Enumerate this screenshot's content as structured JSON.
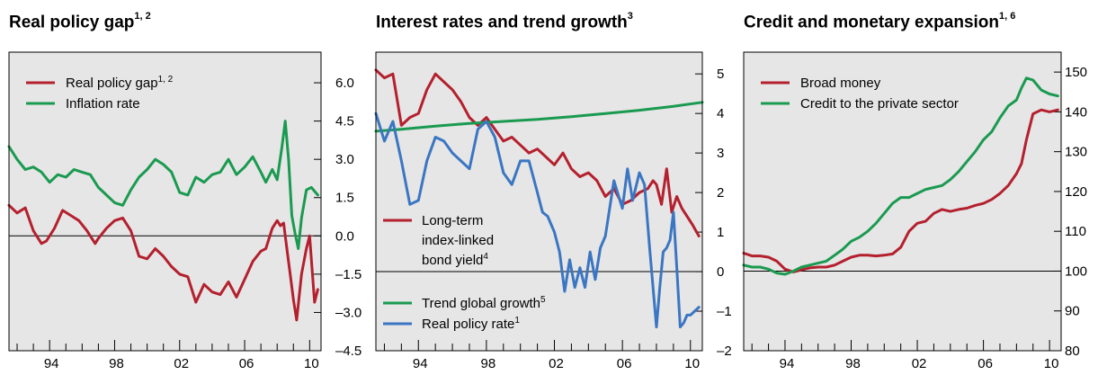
{
  "colors": {
    "red": "#b4202e",
    "green": "#1a9a50",
    "blue": "#3b76c2",
    "panel_bg": "#e6e6e6"
  },
  "chart_data": [
    {
      "type": "line",
      "title": "Real policy gap",
      "title_sup": "1, 2",
      "xlim": [
        1991.5,
        2010.7
      ],
      "ylim": [
        -4.5,
        7.2
      ],
      "x_ticks": [
        "94",
        "98",
        "02",
        "06",
        "10"
      ],
      "x_tick_years": [
        1994,
        1998,
        2002,
        2006,
        2010
      ],
      "y_ticks": [
        "6.0",
        "4.5",
        "3.0",
        "1.5",
        "0.0",
        "–1.5",
        "–3.0",
        "–4.5"
      ],
      "y_tick_values": [
        6.0,
        4.5,
        3.0,
        1.5,
        0.0,
        -1.5,
        -3.0,
        -4.5
      ],
      "y_axis_side": "right",
      "zero_line": 0,
      "legend_placement": "top-left",
      "series": [
        {
          "name": "Real policy gap",
          "name_sup": "1, 2",
          "color_key": "red",
          "x": [
            1991.5,
            1992.0,
            1992.5,
            1993.0,
            1993.5,
            1993.8,
            1994.3,
            1994.8,
            1995.3,
            1995.8,
            1996.3,
            1996.8,
            1997.0,
            1997.5,
            1998.0,
            1998.5,
            1999.0,
            1999.5,
            2000.0,
            2000.5,
            2001.0,
            2001.5,
            2002.0,
            2002.5,
            2003.0,
            2003.5,
            2004.0,
            2004.5,
            2005.0,
            2005.5,
            2006.0,
            2006.5,
            2007.0,
            2007.3,
            2007.7,
            2008.0,
            2008.2,
            2008.4,
            2008.6,
            2008.8,
            2009.0,
            2009.2,
            2009.5,
            2009.8,
            2010.0,
            2010.3,
            2010.5
          ],
          "y": [
            1.2,
            0.9,
            1.1,
            0.2,
            -0.3,
            -0.2,
            0.3,
            1.0,
            0.8,
            0.6,
            0.2,
            -0.3,
            -0.1,
            0.3,
            0.6,
            0.7,
            0.2,
            -0.8,
            -0.9,
            -0.5,
            -0.8,
            -1.2,
            -1.5,
            -1.6,
            -2.6,
            -1.9,
            -2.2,
            -2.3,
            -1.8,
            -2.4,
            -1.7,
            -1.0,
            -0.6,
            -0.5,
            0.3,
            0.6,
            0.4,
            0.5,
            -0.5,
            -1.5,
            -2.5,
            -3.3,
            -1.5,
            -0.5,
            0.0,
            -2.6,
            -2.1
          ]
        },
        {
          "name": "Inflation rate",
          "color_key": "green",
          "x": [
            1991.5,
            1992.0,
            1992.5,
            1993.0,
            1993.5,
            1994.0,
            1994.5,
            1995.0,
            1995.5,
            1996.0,
            1996.5,
            1997.0,
            1997.5,
            1998.0,
            1998.5,
            1999.0,
            1999.5,
            2000.0,
            2000.5,
            2001.0,
            2001.5,
            2002.0,
            2002.5,
            2003.0,
            2003.5,
            2004.0,
            2004.5,
            2005.0,
            2005.5,
            2006.0,
            2006.5,
            2007.0,
            2007.3,
            2007.7,
            2008.0,
            2008.3,
            2008.5,
            2008.7,
            2008.9,
            2009.1,
            2009.3,
            2009.5,
            2009.8,
            2010.1,
            2010.5
          ],
          "y": [
            3.5,
            3.0,
            2.6,
            2.7,
            2.5,
            2.1,
            2.4,
            2.3,
            2.6,
            2.5,
            2.4,
            1.9,
            1.6,
            1.3,
            1.2,
            1.8,
            2.3,
            2.6,
            3.0,
            2.8,
            2.5,
            1.7,
            1.6,
            2.3,
            2.1,
            2.4,
            2.5,
            3.0,
            2.4,
            2.7,
            3.1,
            2.5,
            2.1,
            2.6,
            2.2,
            3.5,
            4.5,
            3.0,
            0.8,
            0.1,
            -0.5,
            0.7,
            1.8,
            1.9,
            1.6
          ]
        }
      ]
    },
    {
      "type": "line",
      "title": "Interest rates and trend growth",
      "title_sup": "3",
      "xlim": [
        1991.5,
        2010.7
      ],
      "ylim": [
        -2,
        5.55
      ],
      "x_ticks": [
        "94",
        "98",
        "02",
        "06",
        "10"
      ],
      "x_tick_years": [
        1994,
        1998,
        2002,
        2006,
        2010
      ],
      "y_ticks": [
        "5",
        "4",
        "3",
        "2",
        "1",
        "0",
        "–1",
        "–2"
      ],
      "y_tick_values": [
        5,
        4,
        3,
        2,
        1,
        0,
        -1,
        -2
      ],
      "y_axis_side": "right",
      "zero_line": 0,
      "series": [
        {
          "name": "Long-term index-linked bond yield",
          "name_lines": [
            "Long-term",
            "index-linked",
            "bond yield"
          ],
          "name_sup": "4",
          "color_key": "red",
          "x": [
            1991.5,
            1992.0,
            1992.5,
            1993.0,
            1993.5,
            1994.0,
            1994.5,
            1995.0,
            1995.5,
            1996.0,
            1996.5,
            1997.0,
            1997.5,
            1998.0,
            1998.5,
            1999.0,
            1999.5,
            2000.0,
            2000.5,
            2001.0,
            2001.5,
            2002.0,
            2002.5,
            2003.0,
            2003.5,
            2004.0,
            2004.5,
            2005.0,
            2005.5,
            2006.0,
            2006.5,
            2007.0,
            2007.5,
            2007.8,
            2008.0,
            2008.3,
            2008.6,
            2008.9,
            2009.2,
            2009.5,
            2009.8,
            2010.1,
            2010.5
          ],
          "y": [
            5.1,
            4.9,
            5.0,
            3.7,
            3.9,
            4.0,
            4.6,
            5.0,
            4.8,
            4.6,
            4.3,
            3.9,
            3.7,
            3.9,
            3.6,
            3.3,
            3.4,
            3.2,
            3.0,
            3.1,
            2.9,
            2.7,
            3.0,
            2.6,
            2.4,
            2.5,
            2.3,
            1.9,
            2.1,
            1.7,
            1.8,
            2.0,
            2.1,
            2.3,
            2.2,
            1.7,
            2.6,
            1.5,
            1.9,
            1.6,
            1.4,
            1.2,
            0.9
          ]
        },
        {
          "name": "Trend global growth",
          "name_sup": "5",
          "color_key": "green",
          "x": [
            1991.5,
            1993.0,
            1995.0,
            1997.0,
            1999.0,
            2001.0,
            2003.0,
            2005.0,
            2007.0,
            2009.0,
            2010.7
          ],
          "y": [
            3.55,
            3.6,
            3.68,
            3.75,
            3.8,
            3.85,
            3.92,
            4.0,
            4.08,
            4.18,
            4.28
          ]
        },
        {
          "name": "Real policy rate",
          "name_sup": "1",
          "color_key": "blue",
          "x": [
            1991.5,
            1992.0,
            1992.5,
            1993.0,
            1993.5,
            1994.0,
            1994.5,
            1995.0,
            1995.5,
            1996.0,
            1996.5,
            1997.0,
            1997.5,
            1998.0,
            1998.5,
            1999.0,
            1999.5,
            2000.0,
            2000.5,
            2001.0,
            2001.3,
            2001.6,
            2002.0,
            2002.3,
            2002.6,
            2002.9,
            2003.2,
            2003.5,
            2003.8,
            2004.1,
            2004.4,
            2004.7,
            2005.0,
            2005.5,
            2006.0,
            2006.3,
            2006.6,
            2007.0,
            2007.3,
            2007.6,
            2008.0,
            2008.2,
            2008.4,
            2008.6,
            2008.8,
            2009.0,
            2009.2,
            2009.4,
            2009.6,
            2009.8,
            2010.0,
            2010.5
          ],
          "y": [
            4.0,
            3.3,
            3.8,
            2.8,
            1.7,
            1.8,
            2.8,
            3.4,
            3.3,
            3.0,
            2.8,
            2.6,
            3.6,
            3.8,
            3.4,
            2.5,
            2.2,
            2.8,
            2.8,
            2.0,
            1.5,
            1.4,
            1.0,
            0.5,
            -0.5,
            0.3,
            -0.4,
            0.1,
            -0.4,
            0.5,
            -0.2,
            0.6,
            0.9,
            2.3,
            1.6,
            2.6,
            1.8,
            2.5,
            2.2,
            0.6,
            -1.4,
            -0.4,
            0.5,
            0.6,
            0.8,
            1.5,
            0.1,
            -1.4,
            -1.3,
            -1.1,
            -1.1,
            -0.9
          ]
        }
      ]
    },
    {
      "type": "line",
      "title": "Credit and monetary expansion",
      "title_sup": "1, 6",
      "xlim": [
        1991.5,
        2010.7
      ],
      "ylim": [
        80,
        155
      ],
      "x_ticks": [
        "94",
        "98",
        "02",
        "06",
        "10"
      ],
      "x_tick_years": [
        1994,
        1998,
        2002,
        2006,
        2010
      ],
      "y_ticks": [
        "150",
        "140",
        "130",
        "120",
        "110",
        "100",
        "90",
        "80"
      ],
      "y_tick_values": [
        150,
        140,
        130,
        120,
        110,
        100,
        90,
        80
      ],
      "y_axis_side": "right",
      "zero_line": 100,
      "legend_placement": "top-left",
      "series": [
        {
          "name": "Broad money",
          "color_key": "red",
          "x": [
            1991.5,
            1992.0,
            1992.5,
            1993.0,
            1993.5,
            1994.0,
            1994.5,
            1995.0,
            1995.5,
            1996.0,
            1996.5,
            1997.0,
            1997.5,
            1998.0,
            1998.5,
            1999.0,
            1999.5,
            2000.0,
            2000.5,
            2001.0,
            2001.5,
            2002.0,
            2002.5,
            2003.0,
            2003.5,
            2004.0,
            2004.5,
            2005.0,
            2005.5,
            2006.0,
            2006.5,
            2007.0,
            2007.5,
            2008.0,
            2008.3,
            2008.6,
            2009.0,
            2009.5,
            2010.0,
            2010.5
          ],
          "y": [
            104.5,
            103.8,
            103.8,
            103.5,
            102.5,
            100.5,
            99.8,
            100.3,
            100.8,
            101.0,
            101.0,
            101.5,
            102.5,
            103.5,
            104.0,
            104.0,
            103.8,
            104.0,
            104.3,
            106.0,
            110.0,
            112.0,
            112.5,
            114.5,
            115.5,
            115.0,
            115.5,
            115.8,
            116.5,
            117.0,
            118.0,
            119.5,
            121.5,
            124.5,
            127.0,
            133.0,
            139.5,
            140.5,
            140.0,
            140.5
          ]
        },
        {
          "name": "Credit to the private sector",
          "color_key": "green",
          "x": [
            1991.5,
            1992.0,
            1992.5,
            1993.0,
            1993.5,
            1994.0,
            1994.5,
            1995.0,
            1995.5,
            1996.0,
            1996.5,
            1997.0,
            1997.5,
            1998.0,
            1998.5,
            1999.0,
            1999.5,
            2000.0,
            2000.5,
            2001.0,
            2001.5,
            2002.0,
            2002.5,
            2003.0,
            2003.5,
            2004.0,
            2004.5,
            2005.0,
            2005.5,
            2006.0,
            2006.5,
            2007.0,
            2007.5,
            2008.0,
            2008.3,
            2008.6,
            2009.0,
            2009.5,
            2010.0,
            2010.5
          ],
          "y": [
            101.5,
            101.0,
            101.0,
            100.5,
            99.5,
            99.2,
            100.0,
            101.0,
            101.5,
            102.0,
            102.5,
            104.0,
            105.5,
            107.5,
            108.5,
            110.0,
            112.0,
            114.5,
            117.0,
            118.5,
            118.5,
            119.5,
            120.5,
            121.0,
            121.5,
            123.0,
            125.0,
            127.5,
            130.0,
            133.0,
            135.0,
            138.5,
            141.5,
            143.0,
            146.0,
            148.5,
            148.0,
            145.5,
            144.5,
            144.0
          ]
        }
      ]
    }
  ]
}
